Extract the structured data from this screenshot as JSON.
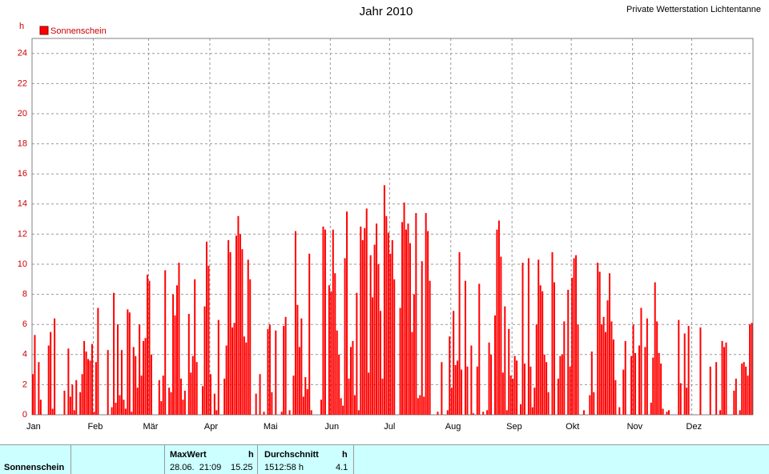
{
  "chart_data": {
    "type": "bar",
    "title": "Jahr 2010",
    "station": "Private Wetterstation Lichtentanne",
    "y_label": "h",
    "x": [
      1,
      2,
      3,
      4,
      5,
      6,
      7,
      8,
      9,
      10,
      11,
      12,
      13,
      14,
      15,
      16,
      17,
      18,
      19,
      20,
      21,
      22,
      23,
      24,
      25,
      26,
      27,
      28,
      29,
      30,
      31,
      32,
      33,
      34,
      35,
      36,
      37,
      38,
      39,
      40,
      41,
      42,
      43,
      44,
      45,
      46,
      47,
      48,
      49,
      50,
      51,
      52,
      53,
      54,
      55,
      56,
      57,
      58,
      59,
      60,
      61,
      62,
      63,
      64,
      65,
      66,
      67,
      68,
      69,
      70,
      71,
      72,
      73,
      74,
      75,
      76,
      77,
      78,
      79,
      80,
      81,
      82,
      83,
      84,
      85,
      86,
      87,
      88,
      89,
      90,
      91,
      92,
      93,
      94,
      95,
      96,
      97,
      98,
      99,
      100,
      101,
      102,
      103,
      104,
      105,
      106,
      107,
      108,
      109,
      110,
      111,
      112,
      113,
      114,
      115,
      116,
      117,
      118,
      119,
      120,
      121,
      122,
      123,
      124,
      125,
      126,
      127,
      128,
      129,
      130,
      131,
      132,
      133,
      134,
      135,
      136,
      137,
      138,
      139,
      140,
      141,
      142,
      143,
      144,
      145,
      146,
      147,
      148,
      149,
      150,
      151,
      152,
      153,
      154,
      155,
      156,
      157,
      158,
      159,
      160,
      161,
      162,
      163,
      164,
      165,
      166,
      167,
      168,
      169,
      170,
      171,
      172,
      173,
      174,
      175,
      176,
      177,
      178,
      179,
      180,
      181,
      182,
      183,
      184,
      185,
      186,
      187,
      188,
      189,
      190,
      191,
      192,
      193,
      194,
      195,
      196,
      197,
      198,
      199,
      200,
      201,
      202,
      203,
      204,
      205,
      206,
      207,
      208,
      209,
      210,
      211,
      212,
      213,
      214,
      215,
      216,
      217,
      218,
      219,
      220,
      221,
      222,
      223,
      224,
      225,
      226,
      227,
      228,
      229,
      230,
      231,
      232,
      233,
      234,
      235,
      236,
      237,
      238,
      239,
      240,
      241,
      242,
      243,
      244,
      245,
      246,
      247,
      248,
      249,
      250,
      251,
      252,
      253,
      254,
      255,
      256,
      257,
      258,
      259,
      260,
      261,
      262,
      263,
      264,
      265,
      266,
      267,
      268,
      269,
      270,
      271,
      272,
      273,
      274,
      275,
      276,
      277,
      278,
      279,
      280,
      281,
      282,
      283,
      284,
      285,
      286,
      287,
      288,
      289,
      290,
      291,
      292,
      293,
      294,
      295,
      296,
      297,
      298,
      299,
      300,
      301,
      302,
      303,
      304,
      305,
      306,
      307,
      308,
      309,
      310,
      311,
      312,
      313,
      314,
      315,
      316,
      317,
      318,
      319,
      320,
      321,
      322,
      323,
      324,
      325,
      326,
      327,
      328,
      329,
      330,
      331,
      332,
      333,
      334,
      335,
      336,
      337,
      338,
      339,
      340,
      341,
      342,
      343,
      344,
      345,
      346,
      347,
      348,
      349,
      350,
      351,
      352,
      353,
      354,
      355,
      356,
      357,
      358,
      359,
      360,
      361,
      362,
      363,
      364,
      365
    ],
    "series": [
      {
        "name": "Sonnenschein",
        "color": "#ff0000",
        "values": [
          2.7,
          5.3,
          0,
          3.5,
          1.0,
          0,
          0,
          0,
          4.6,
          5.5,
          0.4,
          6.4,
          0,
          0,
          0,
          0,
          1.6,
          0,
          4.4,
          1.2,
          2.0,
          0.3,
          2.3,
          0,
          1.5,
          2.7,
          4.9,
          4.2,
          3.7,
          3.6,
          4.7,
          0.2,
          3.5,
          7.1,
          0,
          0,
          0,
          0,
          4.3,
          0,
          0.5,
          8.1,
          0.8,
          6.0,
          1.3,
          4.3,
          1.0,
          0.4,
          7.0,
          6.8,
          0.2,
          4.5,
          3.9,
          1.8,
          6.0,
          2.6,
          4.9,
          5.1,
          9.3,
          8.9,
          4.0,
          0,
          0,
          0,
          2.3,
          0.9,
          2.6,
          9.6,
          0,
          1.8,
          1.5,
          8.0,
          6.6,
          8.6,
          10.1,
          2.4,
          1.0,
          1.6,
          0,
          6.7,
          2.8,
          3.9,
          9.0,
          3.5,
          0,
          0,
          1.9,
          7.2,
          11.5,
          9.9,
          2.7,
          0,
          1.4,
          0.3,
          6.3,
          0,
          0,
          2.4,
          4.6,
          11.6,
          10.8,
          5.8,
          6.1,
          11.9,
          13.2,
          12.0,
          11.0,
          5.2,
          4.8,
          10.3,
          9.0,
          0,
          0,
          1.4,
          0,
          2.7,
          0,
          0.2,
          0,
          5.7,
          6.0,
          1.5,
          0,
          5.6,
          0,
          0,
          0.2,
          5.9,
          6.5,
          0,
          0.3,
          0,
          2.6,
          12.2,
          7.3,
          4.5,
          6.4,
          1.2,
          2.5,
          1.7,
          10.7,
          0.3,
          0,
          0,
          0,
          0,
          1.0,
          12.5,
          12.3,
          0,
          8.6,
          8.2,
          12.3,
          9.4,
          5.6,
          4.0,
          1.1,
          0.6,
          10.4,
          13.5,
          2.4,
          4.5,
          4.9,
          1.3,
          8.1,
          0.3,
          12.5,
          11.6,
          12.4,
          13.7,
          2.8,
          10.6,
          7.8,
          11.3,
          12.7,
          10.0,
          6.9,
          2.4,
          15.25,
          13.2,
          12.1,
          10.7,
          11.6,
          9.0,
          0,
          0,
          7.1,
          12.8,
          14.1,
          12.3,
          12.7,
          11.4,
          5.5,
          8.0,
          13.4,
          1.1,
          1.3,
          10.2,
          1.2,
          13.4,
          12.2,
          8.9,
          0,
          0,
          0,
          0.2,
          0,
          3.5,
          0,
          0,
          0.3,
          5.2,
          1.8,
          6.9,
          3.3,
          3.6,
          10.8,
          3.0,
          0,
          8.9,
          3.2,
          0,
          4.6,
          0.1,
          0,
          3.2,
          8.7,
          0,
          0.2,
          0,
          0.3,
          4.8,
          4.0,
          0,
          6.6,
          12.3,
          12.9,
          10.5,
          2.8,
          7.2,
          0.3,
          5.7,
          2.6,
          2.4,
          3.9,
          3.6,
          0,
          0.7,
          10.1,
          3.4,
          0,
          10.4,
          3.2,
          0.5,
          1.8,
          6.0,
          10.3,
          8.6,
          8.2,
          4.0,
          3.5,
          1.5,
          0,
          10.8,
          8.8,
          0,
          2.4,
          3.9,
          4.0,
          6.2,
          0,
          8.3,
          3.2,
          9.1,
          10.4,
          10.6,
          6.0,
          0,
          0,
          0.3,
          0,
          0,
          1.3,
          4.2,
          1.5,
          0,
          10.1,
          9.5,
          6.0,
          6.5,
          5.5,
          7.6,
          9.4,
          6.2,
          5.0,
          2.3,
          0,
          0.5,
          0,
          3.0,
          4.9,
          0,
          0,
          3.9,
          6.0,
          4.1,
          0,
          4.6,
          7.1,
          0,
          4.5,
          6.4,
          0,
          0.8,
          3.8,
          8.8,
          6.2,
          4.1,
          3.4,
          0.4,
          0,
          0.2,
          0.3,
          0,
          0,
          0,
          0,
          6.3,
          2.1,
          0,
          5.4,
          1.8,
          5.9,
          0,
          0,
          0,
          0,
          0,
          5.8,
          0,
          0,
          0,
          0,
          3.2,
          0,
          0,
          3.5,
          0,
          0.3,
          4.9,
          4.5,
          4.8,
          0,
          0,
          0,
          1.6,
          2.4,
          0,
          0.3,
          3.4,
          3.5,
          3.2,
          2.6,
          6.0,
          6.1
        ]
      }
    ],
    "xlim": [
      1,
      366
    ],
    "xticks": [
      {
        "value": 1,
        "label": "Jan"
      },
      {
        "value": 32,
        "label": "Feb"
      },
      {
        "value": 60,
        "label": "Mär"
      },
      {
        "value": 91,
        "label": "Apr"
      },
      {
        "value": 121,
        "label": "Mai"
      },
      {
        "value": 152,
        "label": "Jun"
      },
      {
        "value": 182,
        "label": "Jul"
      },
      {
        "value": 213,
        "label": "Aug"
      },
      {
        "value": 244,
        "label": "Sep"
      },
      {
        "value": 274,
        "label": "Okt"
      },
      {
        "value": 305,
        "label": "Nov"
      },
      {
        "value": 335,
        "label": "Dez"
      }
    ],
    "ylim": [
      0,
      25
    ],
    "yticks": [
      0,
      2,
      4,
      6,
      8,
      10,
      12,
      14,
      16,
      18,
      20,
      22,
      24
    ],
    "grid": true
  },
  "table": {
    "row_label": "Sonnenschein",
    "max": {
      "title": "MaxWert",
      "unit": "h",
      "time": "28.06.  21:09",
      "value": "15.25"
    },
    "avg": {
      "title": "Durchschnitt",
      "unit": "h",
      "total": "1512:58 h",
      "value": "4.1"
    }
  }
}
